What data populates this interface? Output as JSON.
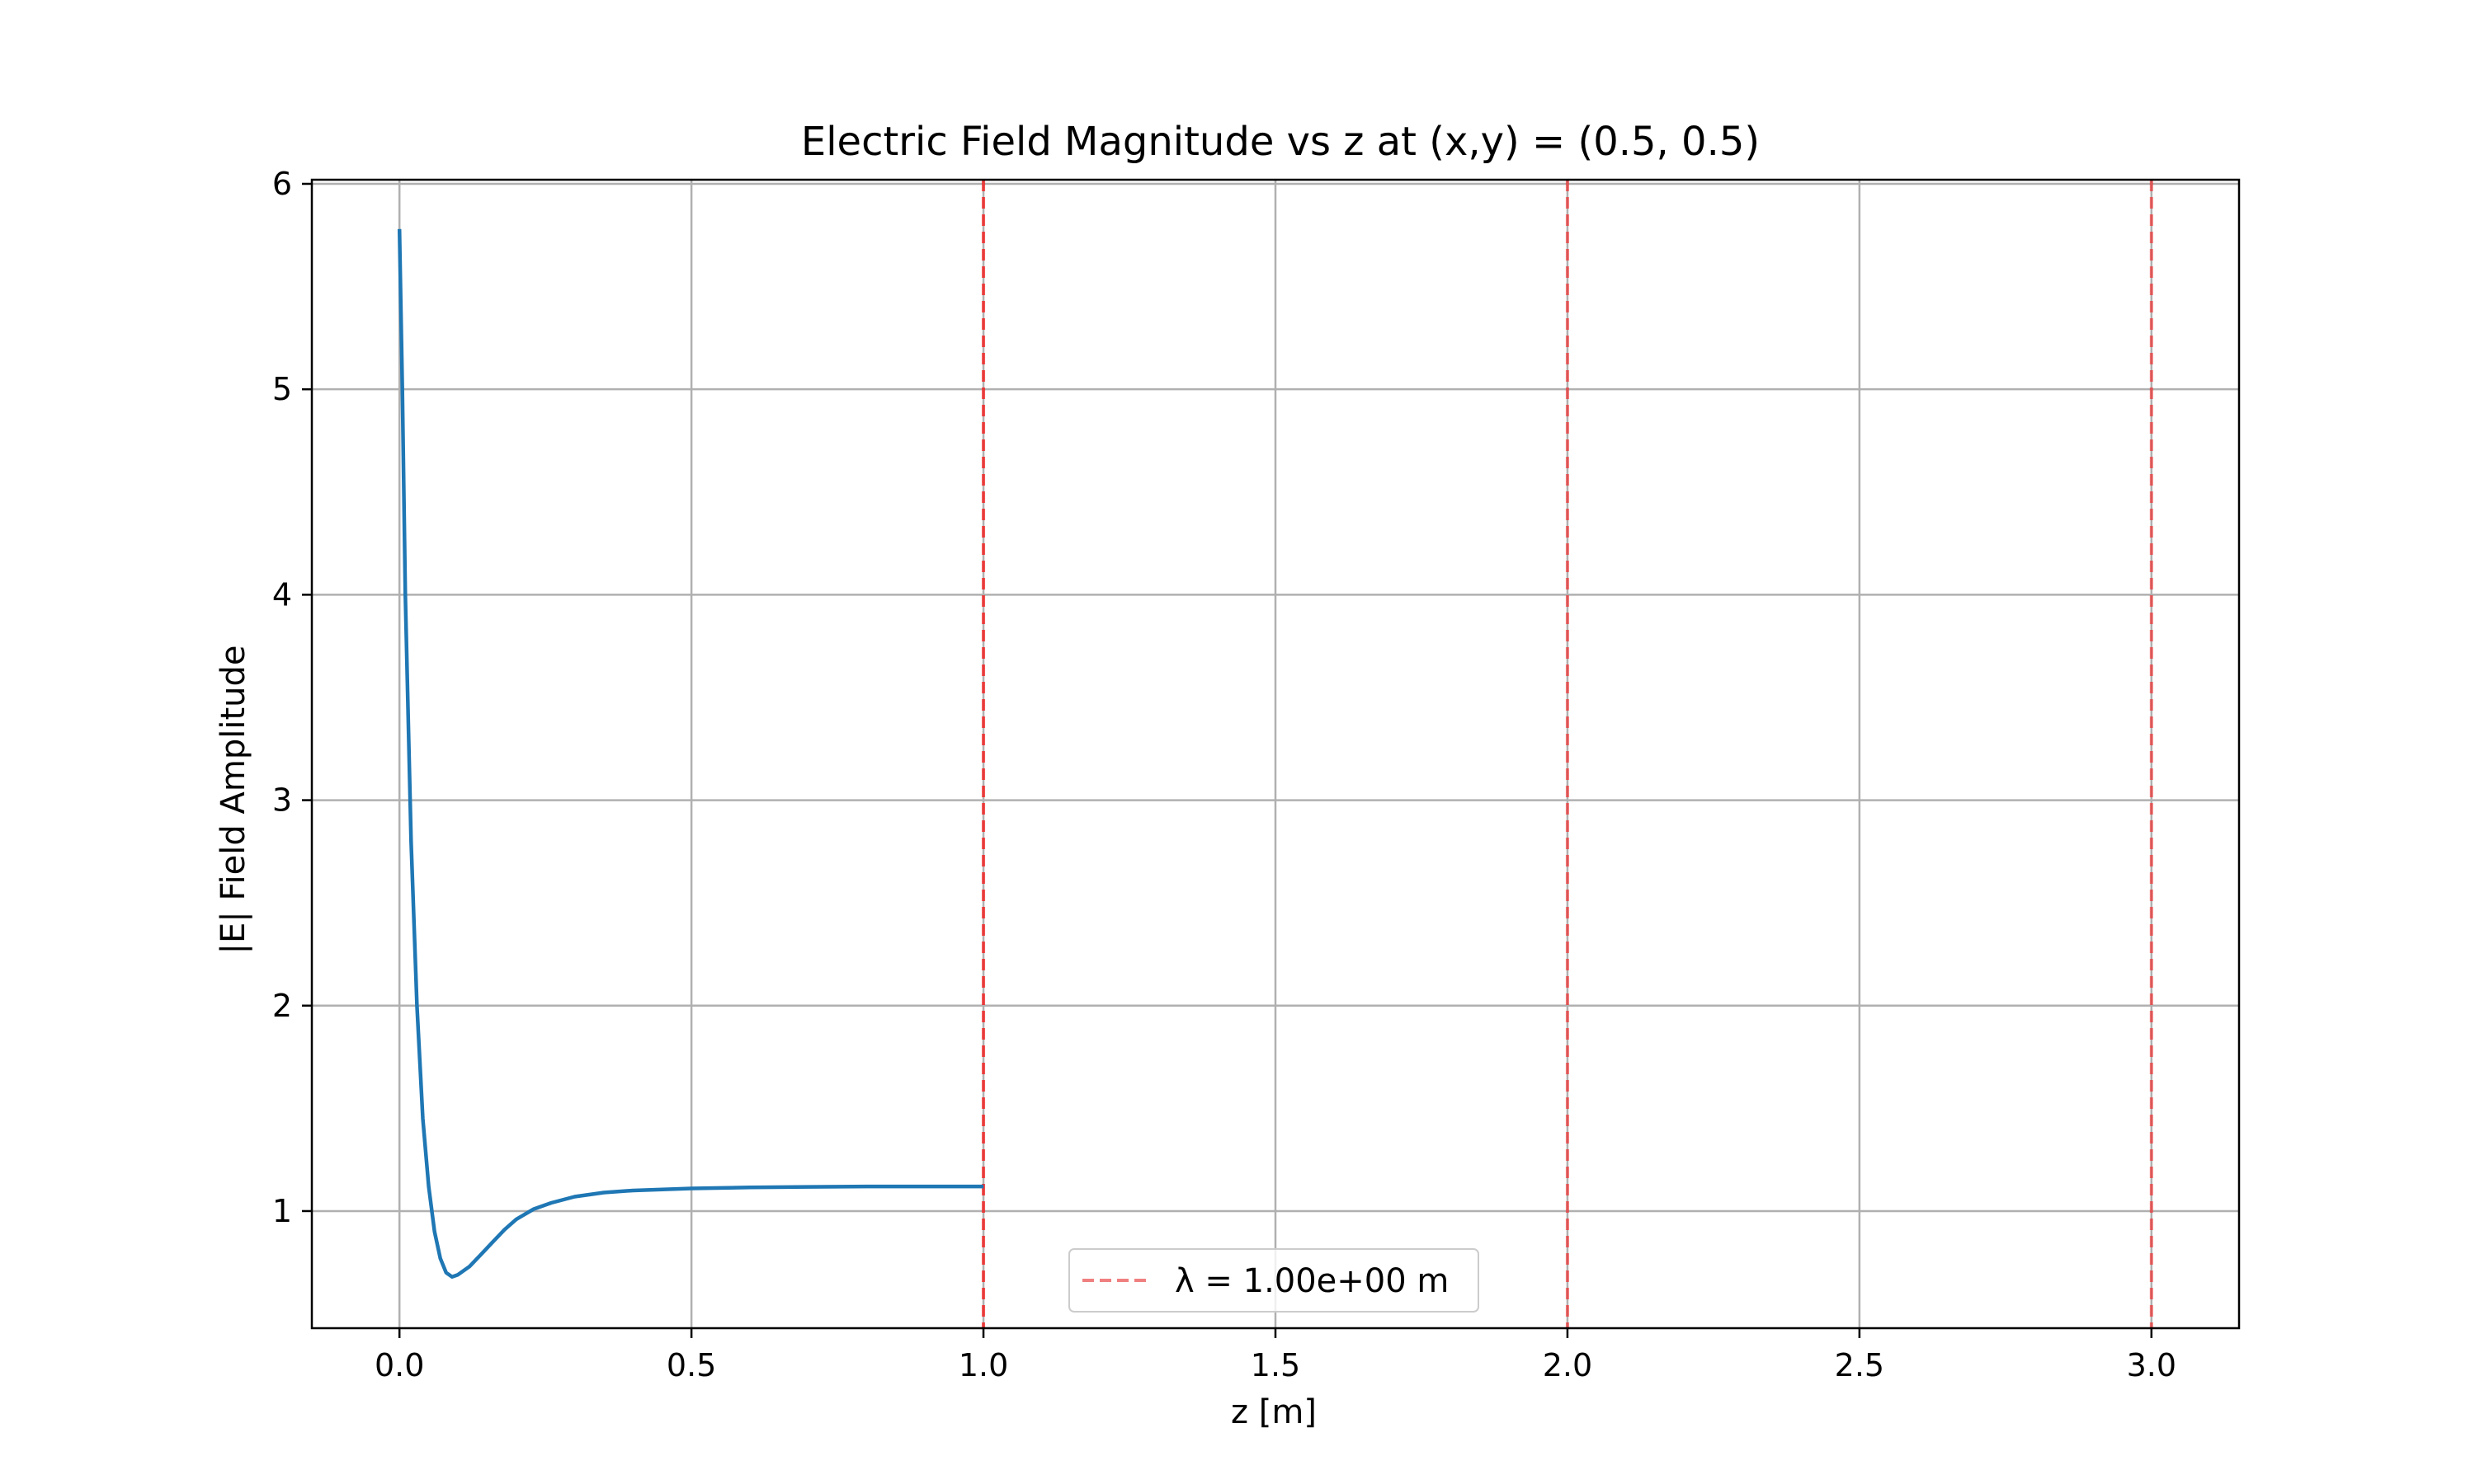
{
  "chart_data": {
    "type": "line",
    "title": "Electric Field Magnitude vs z at (x,y) = (0.5, 0.5)",
    "xlabel": "z [m]",
    "ylabel": "|E| Field Amplitude",
    "xlim": [
      -0.15,
      3.15
    ],
    "ylim": [
      0.43,
      6.02
    ],
    "grid": true,
    "legend_placement": "lower center",
    "x_ticks": [
      "0.0",
      "0.5",
      "1.0",
      "1.5",
      "2.0",
      "2.5",
      "3.0"
    ],
    "x_tick_values": [
      0,
      0.5,
      1.0,
      1.5,
      2.0,
      2.5,
      3.0
    ],
    "y_ticks": [
      "1",
      "2",
      "3",
      "4",
      "5",
      "6"
    ],
    "y_tick_values": [
      1,
      2,
      3,
      4,
      5,
      6
    ],
    "series": [
      {
        "color": "#1f77b4",
        "x": [
          0.0,
          0.005,
          0.01,
          0.015,
          0.02,
          0.03,
          0.04,
          0.05,
          0.06,
          0.07,
          0.08,
          0.09,
          0.1,
          0.12,
          0.14,
          0.16,
          0.18,
          0.2,
          0.23,
          0.26,
          0.3,
          0.35,
          0.4,
          0.45,
          0.5,
          0.6,
          0.7,
          0.8,
          0.9,
          1.0
        ],
        "y": [
          5.78,
          5.0,
          4.0,
          3.4,
          2.8,
          2.0,
          1.45,
          1.12,
          0.9,
          0.77,
          0.7,
          0.68,
          0.69,
          0.73,
          0.79,
          0.85,
          0.91,
          0.96,
          1.01,
          1.04,
          1.07,
          1.09,
          1.1,
          1.105,
          1.11,
          1.115,
          1.118,
          1.12,
          1.12,
          1.12
        ]
      }
    ],
    "vlines": [
      {
        "x": 1.0,
        "color": "#ff0000",
        "alpha": 0.65
      },
      {
        "x": 2.0,
        "color": "#ff0000",
        "alpha": 0.5
      },
      {
        "x": 3.0,
        "color": "#ff0000",
        "alpha": 0.5
      }
    ],
    "legend": [
      {
        "label": "λ = 1.00e+00 m",
        "color": "#f08080"
      }
    ]
  }
}
